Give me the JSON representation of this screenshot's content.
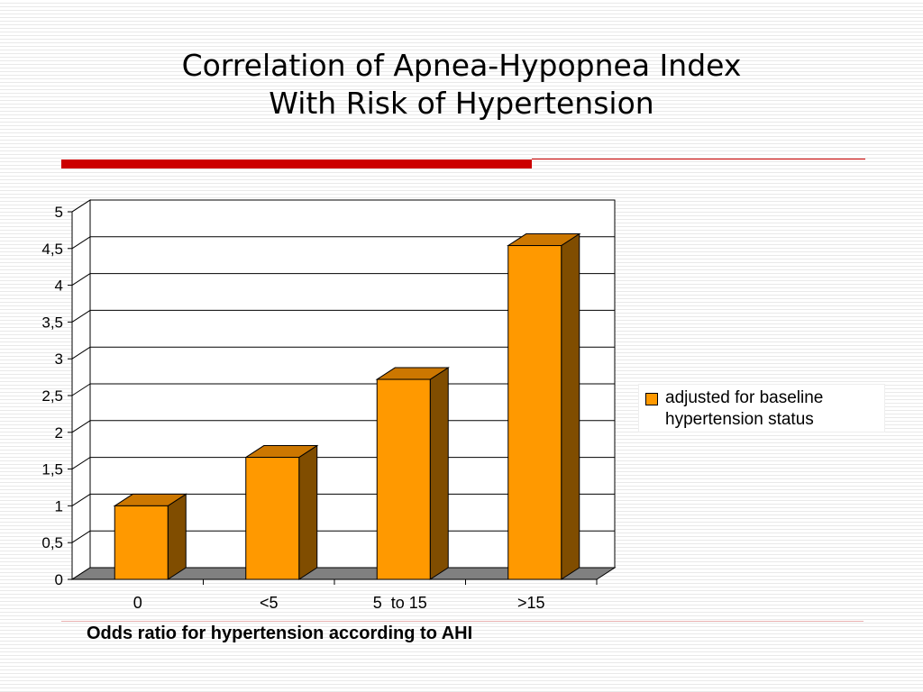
{
  "title_line1": "Correlation of Apnea-Hypopnea Index",
  "title_line2": "With Risk of Hypertension",
  "caption": "Odds ratio for hypertension according to AHI",
  "colors": {
    "bar_front": "#ff9900",
    "bar_top": "#cc7700",
    "bar_side": "#804d00",
    "floor": "#808080",
    "accent_rule": "#cc0000"
  },
  "chart_data": {
    "type": "bar",
    "categories": [
      "0",
      "<5",
      "5  to 15",
      ">15"
    ],
    "series": [
      {
        "name": "adjusted for baseline hypertension status",
        "values": [
          1.0,
          1.66,
          2.72,
          4.54
        ]
      }
    ],
    "yticks": [
      "0",
      "0,5",
      "1",
      "1,5",
      "2",
      "2,5",
      "3",
      "3,5",
      "4",
      "4,5",
      "5"
    ],
    "ylim": [
      0,
      5
    ],
    "grid": true,
    "three_d": true,
    "legend_position": "right"
  }
}
